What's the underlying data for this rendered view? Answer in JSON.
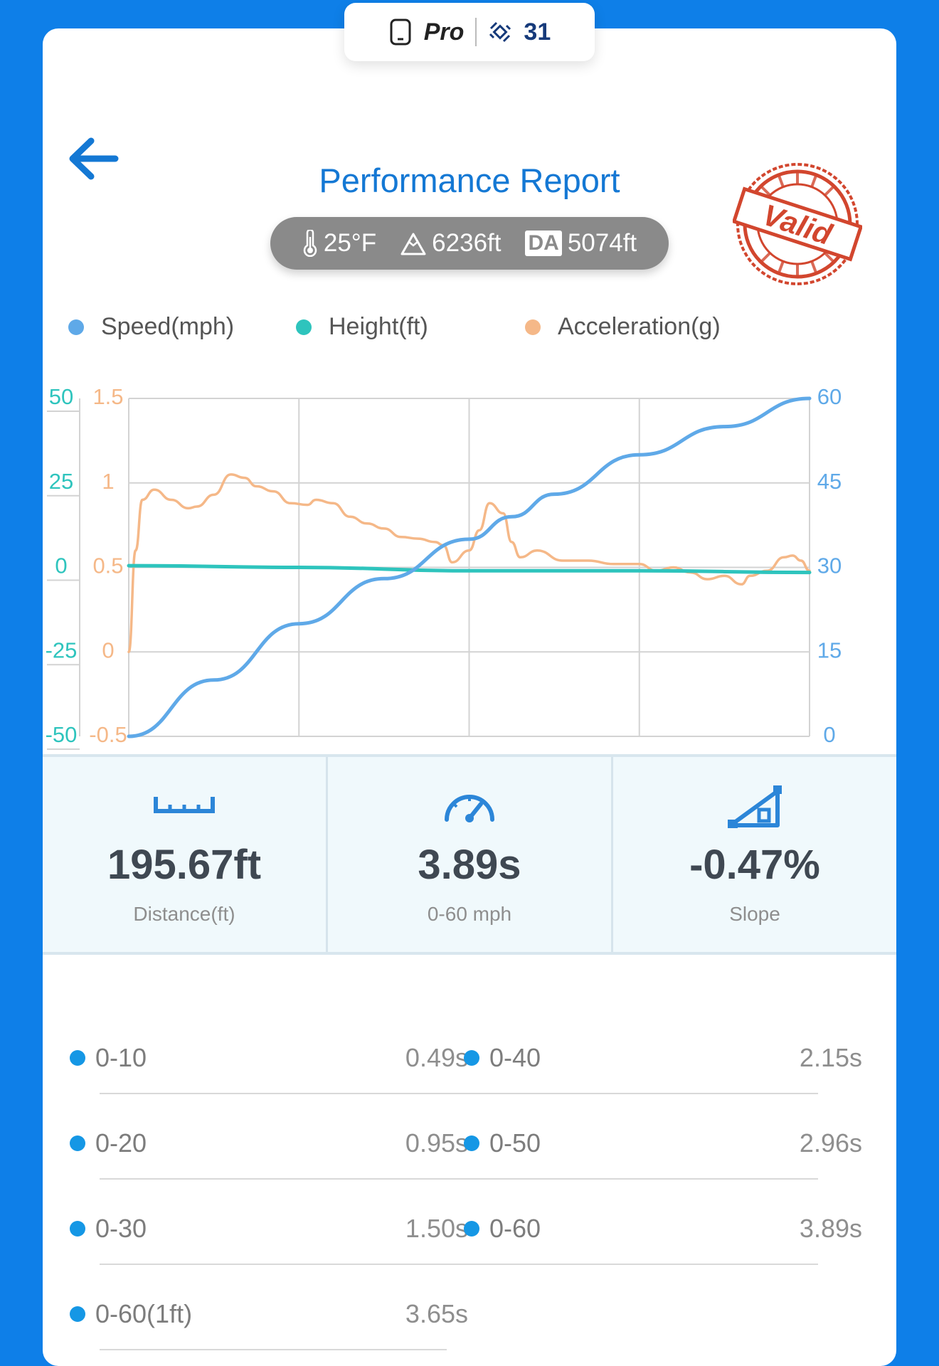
{
  "badge": {
    "label": "Pro",
    "count": "31"
  },
  "header": {
    "title": "Performance Report"
  },
  "conditions": {
    "temperature": "25°F",
    "altitude": "6236ft",
    "da_label": "DA",
    "density_altitude": "5074ft"
  },
  "stamp": {
    "text": "Valid",
    "color": "#d2462e"
  },
  "colors": {
    "brand": "#0e7fe8",
    "speed": "#5fa9e8",
    "height": "#2ec4bd",
    "accel": "#f5b888"
  },
  "legend": [
    {
      "label": "Speed(mph)",
      "color": "#5fa9e8"
    },
    {
      "label": "Height(ft)",
      "color": "#2ec4bd"
    },
    {
      "label": "Acceleration(g)",
      "color": "#f5b888"
    }
  ],
  "chart_data": {
    "type": "line",
    "x_range": [
      0,
      4
    ],
    "axes": {
      "height": {
        "ticks": [
          "50",
          "25",
          "0",
          "-25",
          "-50"
        ],
        "range": [
          -50,
          50
        ]
      },
      "accel": {
        "ticks": [
          "1.5",
          "1",
          "0.5",
          "0",
          "-0.5"
        ],
        "range": [
          -0.5,
          1.5
        ]
      },
      "speed": {
        "ticks": [
          "60",
          "45",
          "30",
          "15",
          "0"
        ],
        "range": [
          0,
          60
        ]
      }
    },
    "grid": true,
    "series": [
      {
        "name": "Speed(mph)",
        "axis": "speed",
        "x": [
          0,
          0.5,
          1,
          1.5,
          2,
          2.25,
          2.5,
          3,
          3.5,
          4
        ],
        "y": [
          0,
          10,
          20,
          28,
          35,
          39,
          43,
          50,
          55,
          60
        ]
      },
      {
        "name": "Height(ft)",
        "axis": "height",
        "x": [
          0,
          1,
          2,
          3,
          4
        ],
        "y": [
          0.5,
          0,
          -1,
          -1,
          -1.5
        ]
      },
      {
        "name": "Acceleration(g)",
        "axis": "accel",
        "x": [
          0,
          0.04,
          0.08,
          0.15,
          0.25,
          0.35,
          0.4,
          0.5,
          0.6,
          0.68,
          0.75,
          0.85,
          0.95,
          1.05,
          1.1,
          1.2,
          1.3,
          1.4,
          1.5,
          1.6,
          1.7,
          1.8,
          1.85,
          1.9,
          2.0,
          2.06,
          2.12,
          2.2,
          2.25,
          2.3,
          2.4,
          2.55,
          2.7,
          2.85,
          3.0,
          3.1,
          3.2,
          3.3,
          3.4,
          3.5,
          3.6,
          3.65,
          3.75,
          3.85,
          3.9,
          3.95,
          4.0
        ],
        "y": [
          0,
          0.6,
          0.9,
          0.96,
          0.9,
          0.85,
          0.86,
          0.93,
          1.05,
          1.03,
          0.98,
          0.95,
          0.88,
          0.87,
          0.9,
          0.88,
          0.8,
          0.76,
          0.73,
          0.68,
          0.67,
          0.65,
          0.63,
          0.53,
          0.6,
          0.72,
          0.88,
          0.82,
          0.65,
          0.56,
          0.6,
          0.54,
          0.54,
          0.52,
          0.52,
          0.48,
          0.5,
          0.47,
          0.43,
          0.45,
          0.4,
          0.45,
          0.48,
          0.56,
          0.57,
          0.54,
          0.48
        ]
      }
    ]
  },
  "stats": [
    {
      "value": "195.67ft",
      "label": "Distance(ft)",
      "icon": "ruler-icon"
    },
    {
      "value": "3.89s",
      "label": "0-60 mph",
      "icon": "speedometer-icon"
    },
    {
      "value": "-0.47%",
      "label": "Slope",
      "icon": "slope-icon"
    }
  ],
  "splits": [
    {
      "name": "0-10",
      "time": "0.49s"
    },
    {
      "name": "0-40",
      "time": "2.15s"
    },
    {
      "name": "0-20",
      "time": "0.95s"
    },
    {
      "name": "0-50",
      "time": "2.96s"
    },
    {
      "name": "0-30",
      "time": "1.50s"
    },
    {
      "name": "0-60",
      "time": "3.89s"
    },
    {
      "name": "0-60(1ft)",
      "time": "3.65s"
    }
  ]
}
